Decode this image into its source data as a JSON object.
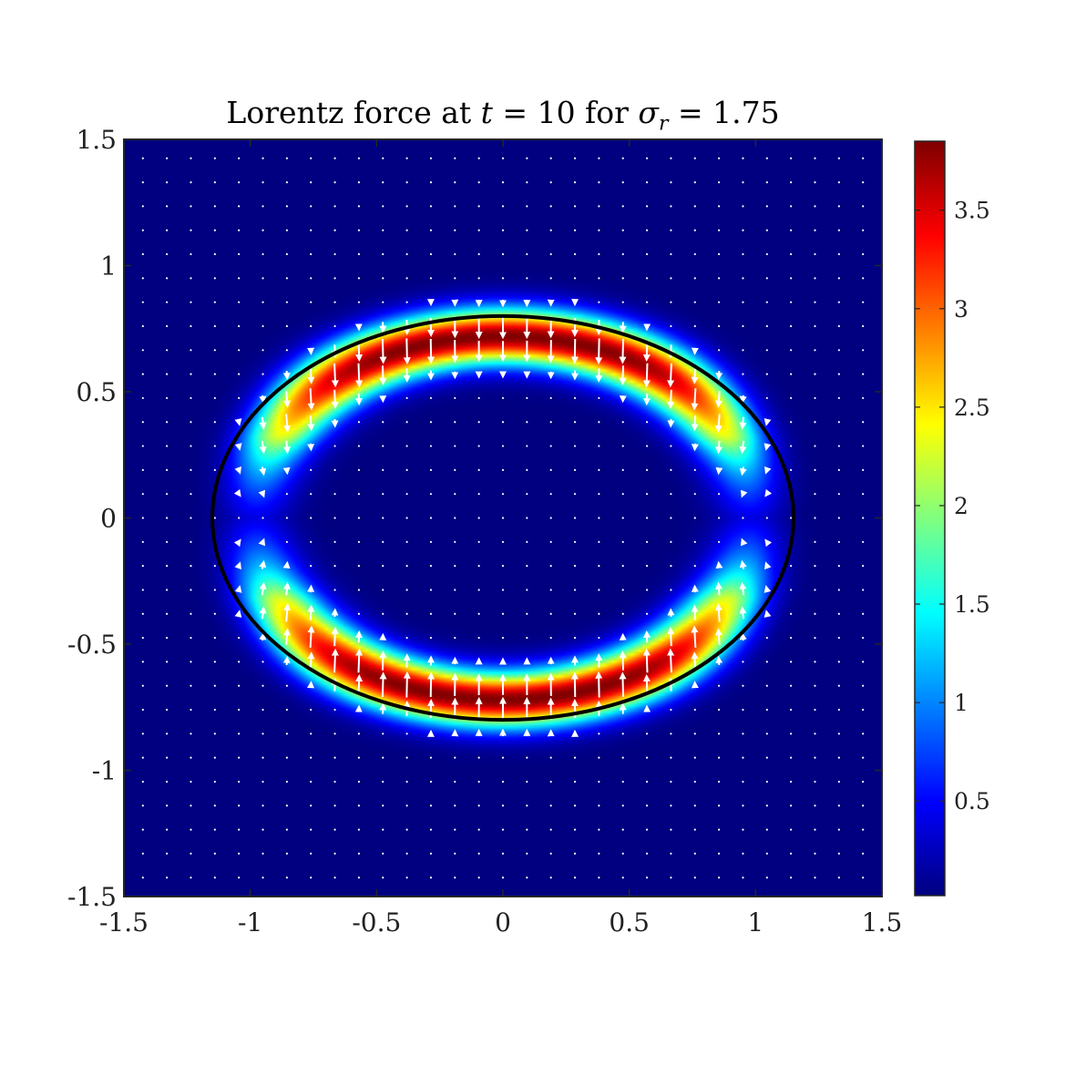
{
  "title": {
    "prefix": "Lorentz force at ",
    "var_t": "t",
    "eq1": " = 10 for ",
    "var_sigma": "σ",
    "sub_r": "r",
    "eq2": " = 1.75"
  },
  "colors": {
    "colormap": "jet",
    "arrows": "#ffffff",
    "interface": "#000000",
    "axes": "#262626"
  },
  "chart_data": {
    "type": "heatmap",
    "title": "Lorentz force at t = 10 for σ_r = 1.75",
    "xlabel": "",
    "ylabel": "",
    "xlim": [
      -1.5,
      1.5
    ],
    "ylim": [
      -1.5,
      1.5
    ],
    "x_ticks": [
      "-1.5",
      "-1",
      "-0.5",
      "0",
      "0.5",
      "1",
      "1.5"
    ],
    "x_tick_values": [
      -1.5,
      -1,
      -0.5,
      0,
      0.5,
      1,
      1.5
    ],
    "y_ticks": [
      "1.5",
      "1",
      "0.5",
      "0",
      "-0.5",
      "-1",
      "-1.5"
    ],
    "y_tick_values": [
      1.5,
      1,
      0.5,
      0,
      -0.5,
      -1,
      -1.5
    ],
    "colorbar": {
      "colormap": "jet",
      "range": [
        0.02,
        3.85
      ],
      "ticks": [
        "3.5",
        "3",
        "2.5",
        "2",
        "1.5",
        "1",
        "0.5"
      ],
      "tick_values": [
        3.5,
        3,
        2.5,
        2,
        1.5,
        1,
        0.5
      ]
    },
    "interface_ellipse": {
      "center": [
        0,
        0
      ],
      "semi_axis_x": 1.15,
      "semi_axis_y": 0.8
    },
    "field_peak": {
      "magnitude": 3.85,
      "location": [
        0,
        0.73
      ]
    },
    "quiver": {
      "grid_spacing": 0.095,
      "color": "white",
      "direction": "toward x-axis, strongest on the interface band"
    },
    "grid": false
  }
}
